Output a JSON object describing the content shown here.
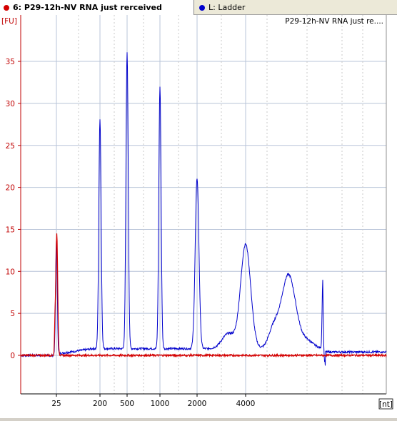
{
  "tabs": [
    {
      "label": "6: P29-12h-NV RNA just rerceived",
      "dot_color": "#d40000",
      "active": true
    },
    {
      "label": "L: Ladder",
      "dot_color": "#0000cc",
      "active": false
    }
  ],
  "chart_data": {
    "type": "line",
    "title": "P29-12h-NV RNA just re....",
    "ylabel": "[FU]",
    "xlabel": "[nt]",
    "ylim": [
      -4.5,
      40
    ],
    "y_ticks": [
      0,
      5,
      10,
      15,
      20,
      25,
      30,
      35
    ],
    "x_ticks": [
      "25",
      "200",
      "500",
      "1000",
      "2000",
      "4000"
    ],
    "grid": true,
    "series": [
      {
        "name": "",
        "color": "#d40000",
        "description": "sample electropherogram: lower marker peak at 25 nt, flat baseline",
        "peaks": [
          {
            "x": "25",
            "y": 14.6
          }
        ],
        "baseline": 0
      },
      {
        "name": "Ladder",
        "color": "#0000cc",
        "description": "ladder electropherogram",
        "peaks": [
          {
            "x": "25",
            "y": 14.6
          },
          {
            "x": "200",
            "y": 28.2
          },
          {
            "x": "500",
            "y": 36.1
          },
          {
            "x": "1000",
            "y": 32.0
          },
          {
            "x": "2000",
            "y": 21.1
          },
          {
            "x": "4000",
            "y": 13.2
          },
          {
            "x": "6000",
            "y": 9.6
          },
          {
            "x": "upper marker",
            "y": 8.9
          }
        ],
        "baseline": 0.8
      }
    ]
  }
}
